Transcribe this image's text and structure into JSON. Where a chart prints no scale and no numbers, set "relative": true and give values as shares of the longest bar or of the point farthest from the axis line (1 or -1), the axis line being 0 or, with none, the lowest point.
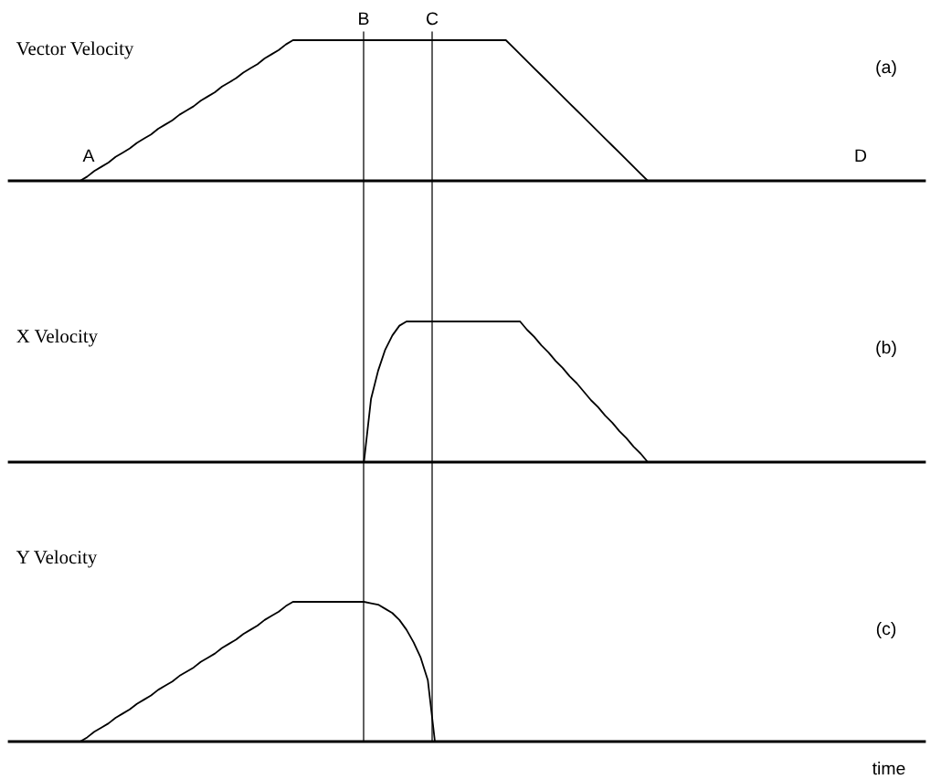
{
  "chart_data": [
    {
      "type": "line",
      "title": "Vector Velocity",
      "relative": true,
      "marker": "none",
      "line_style": "solid",
      "categories": [
        null,
        null,
        null,
        null,
        null,
        null,
        null,
        null,
        null,
        null,
        null,
        null,
        null,
        null,
        null,
        null,
        null,
        null,
        null,
        null,
        null,
        null,
        null,
        null,
        null,
        null,
        null,
        null,
        null,
        null,
        null,
        null,
        null,
        null,
        null,
        null,
        null,
        null,
        null,
        null,
        null,
        null,
        null,
        null,
        null,
        null,
        null,
        null,
        null,
        null,
        null,
        null,
        null,
        null,
        null,
        null,
        null,
        null,
        null,
        null,
        null,
        null,
        null,
        null,
        null,
        null,
        null,
        null,
        null,
        null,
        null,
        null,
        null,
        null,
        null,
        null,
        null,
        null,
        null,
        null,
        null,
        null,
        null,
        null,
        null,
        null,
        null,
        null,
        null,
        null,
        null,
        null,
        null,
        null,
        null,
        null,
        null,
        null,
        null,
        null,
        null,
        null,
        null,
        null,
        null,
        null,
        null,
        null,
        null,
        null,
        null,
        null,
        null,
        null,
        null,
        null,
        null,
        null,
        null,
        null,
        null,
        null,
        null,
        null,
        null,
        null,
        null,
        null,
        null,
        null
      ],
      "series": [
        {
          "color": "#000000",
          "values": [
            0,
            0,
            0,
            0,
            0,
            0,
            0,
            0,
            0,
            0,
            0,
            0.03,
            0.07,
            0.1,
            0.13,
            0.17,
            0.2,
            0.23,
            0.27,
            0.3,
            0.33,
            0.37,
            0.4,
            0.43,
            0.47,
            0.5,
            0.53,
            0.57,
            0.6,
            0.63,
            0.67,
            0.7,
            0.73,
            0.77,
            0.8,
            0.83,
            0.87,
            0.9,
            0.93,
            0.97,
            1,
            1,
            1,
            1,
            1,
            1,
            1,
            1,
            1,
            1,
            1,
            1,
            1,
            1,
            1,
            1,
            1,
            1,
            1,
            1,
            1,
            1,
            1,
            1,
            1,
            1,
            1,
            1,
            1,
            1,
            1,
            0.95,
            0.9,
            0.85,
            0.8,
            0.75,
            0.7,
            0.65,
            0.6,
            0.55,
            0.5,
            0.45,
            0.4,
            0.35,
            0.3,
            0.25,
            0.2,
            0.15,
            0.1,
            0.05,
            0,
            0,
            0,
            0,
            0,
            0,
            0,
            0,
            0,
            0,
            0,
            0,
            0,
            0,
            0,
            0,
            0,
            0,
            0,
            0,
            0,
            0,
            0,
            0,
            0,
            0,
            0,
            0,
            0,
            0,
            0,
            0,
            0,
            0,
            0,
            0,
            0,
            0,
            0,
            0
          ]
        }
      ],
      "annotations": [
        "(a)",
        "A",
        "D",
        "B",
        "C"
      ]
    },
    {
      "type": "line",
      "title": "X Velocity",
      "relative": true,
      "marker": "none",
      "line_style": "solid",
      "categories": [
        null,
        null,
        null,
        null,
        null,
        null,
        null,
        null,
        null,
        null,
        null,
        null,
        null,
        null,
        null,
        null,
        null,
        null,
        null,
        null,
        null,
        null,
        null,
        null,
        null,
        null,
        null,
        null,
        null,
        null,
        null,
        null,
        null,
        null,
        null,
        null,
        null,
        null,
        null,
        null,
        null,
        null,
        null,
        null,
        null,
        null,
        null,
        null,
        null,
        null,
        null,
        null,
        null,
        null,
        null,
        null,
        null,
        null,
        null,
        null,
        null,
        null,
        null,
        null,
        null,
        null,
        null,
        null,
        null,
        null,
        null,
        null,
        null,
        null,
        null,
        null,
        null,
        null,
        null,
        null,
        null,
        null,
        null,
        null,
        null,
        null,
        null,
        null,
        null,
        null,
        null,
        null,
        null,
        null,
        null,
        null,
        null,
        null,
        null,
        null,
        null,
        null,
        null,
        null,
        null,
        null,
        null,
        null,
        null,
        null,
        null,
        null,
        null,
        null,
        null,
        null,
        null,
        null,
        null,
        null,
        null,
        null,
        null,
        null,
        null,
        null,
        null,
        null,
        null,
        null
      ],
      "series": [
        {
          "color": "#000000",
          "values": [
            0,
            0,
            0,
            0,
            0,
            0,
            0,
            0,
            0,
            0,
            0,
            0,
            0,
            0,
            0,
            0,
            0,
            0,
            0,
            0,
            0,
            0,
            0,
            0,
            0,
            0,
            0,
            0,
            0,
            0,
            0,
            0,
            0,
            0,
            0,
            0,
            0,
            0,
            0,
            0,
            0,
            0,
            0,
            0,
            0,
            0,
            0,
            0,
            0,
            0,
            0,
            0.45,
            0.65,
            0.8,
            0.9,
            0.97,
            1,
            1,
            1,
            1,
            1,
            1,
            1,
            1,
            1,
            1,
            1,
            1,
            1,
            1,
            1,
            1,
            1,
            0.94,
            0.89,
            0.83,
            0.78,
            0.72,
            0.67,
            0.61,
            0.56,
            0.5,
            0.44,
            0.39,
            0.33,
            0.28,
            0.22,
            0.17,
            0.11,
            0.06,
            0,
            0,
            0,
            0,
            0,
            0,
            0,
            0,
            0,
            0,
            0,
            0,
            0,
            0,
            0,
            0,
            0,
            0,
            0,
            0,
            0,
            0,
            0,
            0,
            0,
            0,
            0,
            0,
            0,
            0,
            0,
            0,
            0,
            0,
            0,
            0,
            0,
            0,
            0,
            0
          ]
        }
      ],
      "annotations": [
        "(b)"
      ]
    },
    {
      "type": "line",
      "title": "Y Velocity",
      "xlabel": "time",
      "relative": true,
      "marker": "none",
      "line_style": "solid",
      "categories": [
        null,
        null,
        null,
        null,
        null,
        null,
        null,
        null,
        null,
        null,
        null,
        null,
        null,
        null,
        null,
        null,
        null,
        null,
        null,
        null,
        null,
        null,
        null,
        null,
        null,
        null,
        null,
        null,
        null,
        null,
        null,
        null,
        null,
        null,
        null,
        null,
        null,
        null,
        null,
        null,
        null,
        null,
        null,
        null,
        null,
        null,
        null,
        null,
        null,
        null,
        null,
        null,
        null,
        null,
        null,
        null,
        null,
        null,
        null,
        null,
        null,
        null,
        null,
        null,
        null,
        null,
        null,
        null,
        null,
        null,
        null,
        null,
        null,
        null,
        null,
        null,
        null,
        null,
        null,
        null,
        null,
        null,
        null,
        null,
        null,
        null,
        null,
        null,
        null,
        null,
        null,
        null,
        null,
        null,
        null,
        null,
        null,
        null,
        null,
        null,
        null,
        null,
        null,
        null,
        null,
        null,
        null,
        null,
        null,
        null,
        null,
        null,
        null,
        null,
        null,
        null,
        null,
        null,
        null,
        null,
        null,
        null,
        null,
        null,
        null,
        null,
        null,
        null,
        null,
        null
      ],
      "series": [
        {
          "color": "#000000",
          "values": [
            0,
            0,
            0,
            0,
            0,
            0,
            0,
            0,
            0,
            0,
            0,
            0.03,
            0.07,
            0.1,
            0.13,
            0.17,
            0.2,
            0.23,
            0.27,
            0.3,
            0.33,
            0.37,
            0.4,
            0.43,
            0.47,
            0.5,
            0.53,
            0.57,
            0.6,
            0.63,
            0.67,
            0.7,
            0.73,
            0.77,
            0.8,
            0.83,
            0.87,
            0.9,
            0.93,
            0.97,
            1,
            1,
            1,
            1,
            1,
            1,
            1,
            1,
            1,
            1,
            1,
            0.99,
            0.98,
            0.95,
            0.92,
            0.87,
            0.8,
            0.71,
            0.6,
            0.44,
            0,
            0,
            0,
            0,
            0,
            0,
            0,
            0,
            0,
            0,
            0,
            0,
            0,
            0,
            0,
            0,
            0,
            0,
            0,
            0,
            0,
            0,
            0,
            0,
            0,
            0,
            0,
            0,
            0,
            0,
            0,
            0,
            0,
            0,
            0,
            0,
            0,
            0,
            0,
            0,
            0,
            0,
            0,
            0,
            0,
            0,
            0,
            0,
            0,
            0,
            0,
            0,
            0,
            0,
            0,
            0,
            0,
            0,
            0,
            0,
            0,
            0,
            0,
            0,
            0,
            0,
            0,
            0,
            0,
            0
          ]
        }
      ],
      "annotations": [
        "(c)"
      ]
    }
  ]
}
